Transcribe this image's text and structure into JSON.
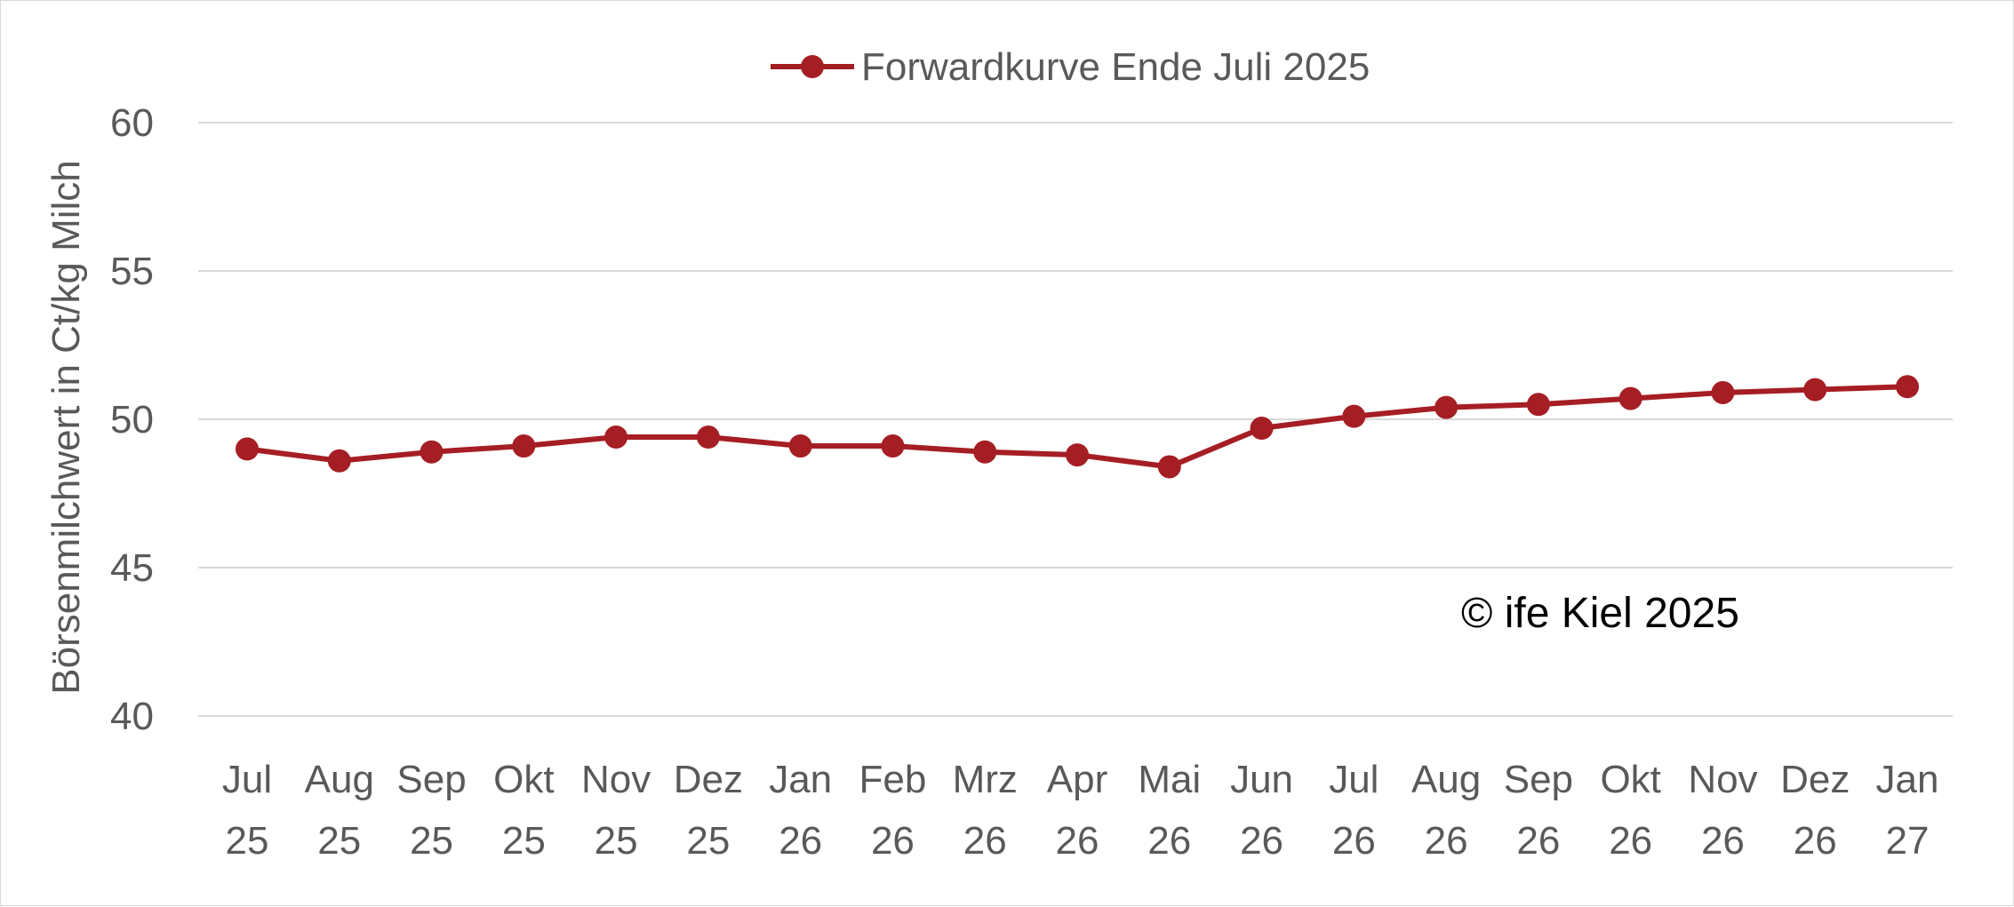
{
  "chart_data": {
    "type": "line",
    "title": "",
    "ylabel": "Börsenmilchwert in Ct/kg Milch",
    "xlabel": "",
    "ylim": [
      40,
      60
    ],
    "yticks": [
      40,
      45,
      50,
      55,
      60
    ],
    "grid": true,
    "legend_position": "top-center",
    "categories": [
      [
        "Jul",
        "25"
      ],
      [
        "Aug",
        "25"
      ],
      [
        "Sep",
        "25"
      ],
      [
        "Okt",
        "25"
      ],
      [
        "Nov",
        "25"
      ],
      [
        "Dez",
        "25"
      ],
      [
        "Jan",
        "26"
      ],
      [
        "Feb",
        "26"
      ],
      [
        "Mrz",
        "26"
      ],
      [
        "Apr",
        "26"
      ],
      [
        "Mai",
        "26"
      ],
      [
        "Jun",
        "26"
      ],
      [
        "Jul",
        "26"
      ],
      [
        "Aug",
        "26"
      ],
      [
        "Sep",
        "26"
      ],
      [
        "Okt",
        "26"
      ],
      [
        "Nov",
        "26"
      ],
      [
        "Dez",
        "26"
      ],
      [
        "Jan",
        "27"
      ]
    ],
    "series": [
      {
        "name": "Forwardkurve Ende Juli 2025",
        "color": "#a51e24",
        "values": [
          49.0,
          48.6,
          48.9,
          49.1,
          49.4,
          49.4,
          49.1,
          49.1,
          48.9,
          48.8,
          48.4,
          49.7,
          50.1,
          50.4,
          50.5,
          50.7,
          50.9,
          51.0,
          51.1
        ]
      }
    ],
    "annotation": "© ife Kiel 2025"
  }
}
